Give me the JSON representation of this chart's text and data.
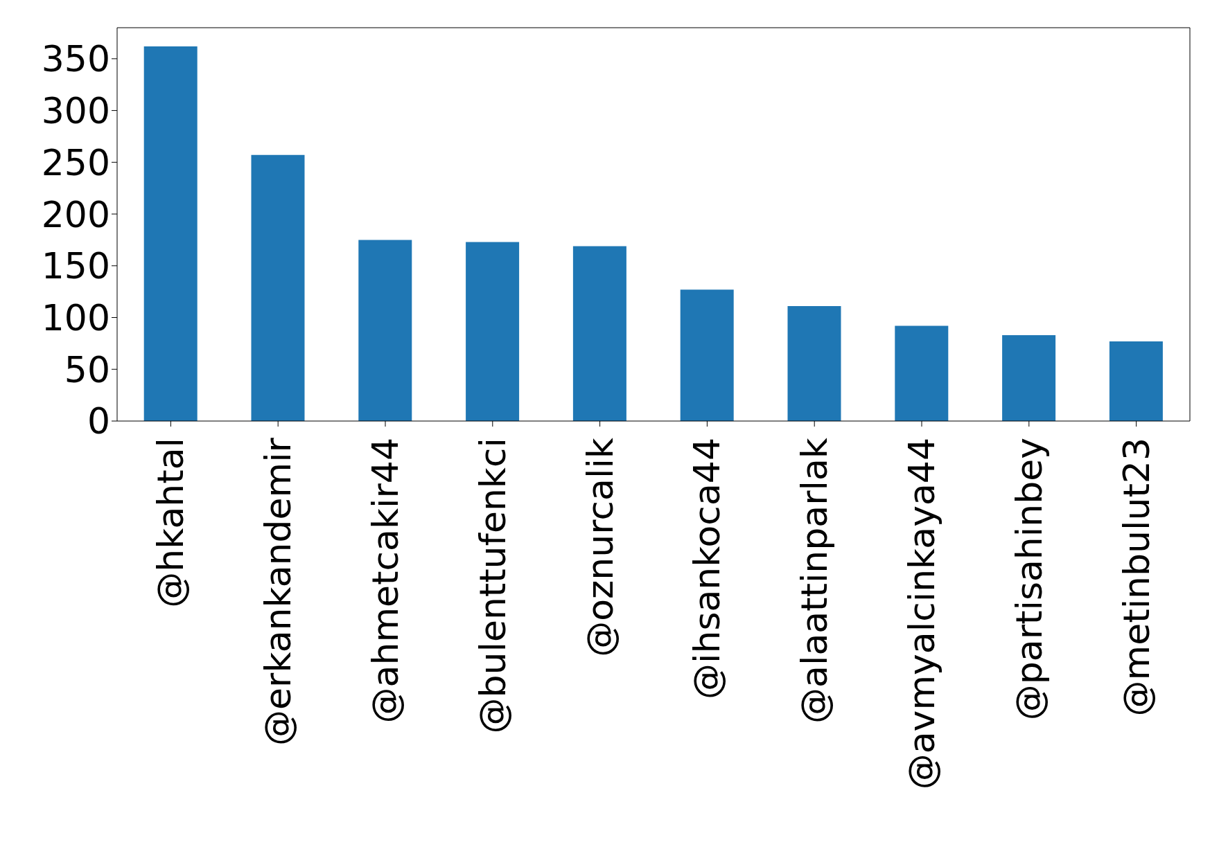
{
  "chart_data": {
    "type": "bar",
    "categories": [
      "@hkahtal",
      "@erkankandemir",
      "@ahmetcakir44",
      "@bulenttufenkci",
      "@oznurcalik",
      "@ihsankoca44",
      "@alaattinparlak",
      "@avmyalcinkaya44",
      "@partisahinbey",
      "@metinbulut23"
    ],
    "values": [
      362,
      257,
      175,
      173,
      169,
      127,
      111,
      92,
      83,
      77
    ],
    "color": "#1f77b4",
    "ylim": [
      0,
      380
    ],
    "yticks": [
      0,
      50,
      100,
      150,
      200,
      250,
      300,
      350
    ],
    "grid": false,
    "legend": false
  }
}
